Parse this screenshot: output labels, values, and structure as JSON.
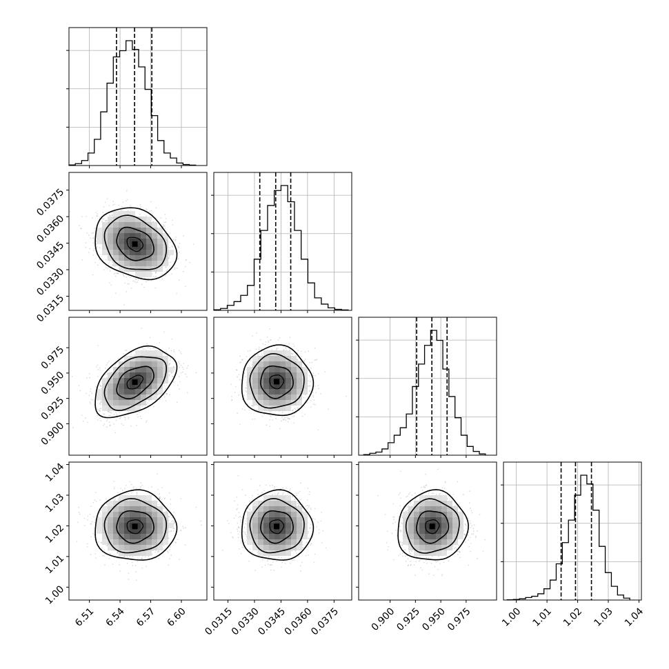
{
  "figure": {
    "background": "#ffffff",
    "grid_color": "#b0b0b0",
    "line_color": "#000000"
  },
  "chart_data": [
    {
      "type": "histogram",
      "parameter_index": 0,
      "xlim": [
        6.49,
        6.625
      ],
      "bin_edges": [
        6.49,
        6.4962,
        6.5024,
        6.5086,
        6.5148,
        6.521,
        6.5272,
        6.5334,
        6.5396,
        6.5458,
        6.552,
        6.5582,
        6.5644,
        6.5706,
        6.5768,
        6.583,
        6.5892,
        6.5954,
        6.6016,
        6.6078,
        6.614
      ],
      "counts": [
        0.5,
        1.5,
        4,
        10,
        21,
        43,
        66,
        87,
        92,
        100,
        93,
        79,
        61,
        40,
        20,
        10,
        6,
        2,
        0.8,
        0.3
      ],
      "quantiles": [
        6.5365,
        6.5542,
        6.5711
      ],
      "x_ticks": [
        "6.51",
        "6.54",
        "6.57",
        "6.60"
      ],
      "x_tick_values": [
        6.51,
        6.54,
        6.57,
        6.6
      ],
      "grid": true
    },
    {
      "type": "histogram",
      "parameter_index": 1,
      "xlim": [
        0.0307,
        0.0385
      ],
      "bin_edges": [
        0.0307,
        0.03108,
        0.03146,
        0.03184,
        0.03222,
        0.0326,
        0.03298,
        0.03336,
        0.03374,
        0.03412,
        0.0345,
        0.03488,
        0.03526,
        0.03564,
        0.03602,
        0.0364,
        0.03678,
        0.03716,
        0.03754,
        0.03792,
        0.0383
      ],
      "counts": [
        0.5,
        1.5,
        4,
        7,
        12,
        20,
        41,
        64,
        84,
        96,
        100,
        87,
        64,
        41,
        22,
        10,
        5,
        2,
        0.8,
        0.3
      ],
      "quantiles": [
        0.0333,
        0.0342,
        0.03505
      ],
      "x_ticks": [
        "0.0315",
        "0.0330",
        "0.0345",
        "0.0360",
        "0.0375"
      ],
      "x_tick_values": [
        0.0315,
        0.033,
        0.0345,
        0.036,
        0.0375
      ],
      "grid": true
    },
    {
      "type": "histogram",
      "parameter_index": 2,
      "xlim": [
        0.869,
        1.005
      ],
      "bin_edges": [
        0.874,
        0.88,
        0.886,
        0.892,
        0.898,
        0.904,
        0.91,
        0.916,
        0.922,
        0.928,
        0.934,
        0.94,
        0.946,
        0.952,
        0.958,
        0.964,
        0.97,
        0.976,
        0.982,
        0.988,
        0.994
      ],
      "counts": [
        0.5,
        1.5,
        2.5,
        5,
        10,
        16,
        22,
        33,
        55,
        73,
        88,
        100,
        92,
        69,
        47,
        30,
        16,
        7,
        3,
        1
      ],
      "quantiles": [
        0.9262,
        0.9412,
        0.9562
      ],
      "x_ticks": [
        "0.900",
        "0.925",
        "0.950",
        "0.975"
      ],
      "x_tick_values": [
        0.9,
        0.925,
        0.95,
        0.975
      ],
      "grid": true
    },
    {
      "type": "histogram",
      "parameter_index": 3,
      "xlim": [
        0.9958,
        1.0408
      ],
      "bin_edges": [
        0.997,
        0.999,
        1.001,
        1.003,
        1.005,
        1.007,
        1.009,
        1.011,
        1.013,
        1.015,
        1.017,
        1.019,
        1.021,
        1.023,
        1.025,
        1.027,
        1.029,
        1.031,
        1.033,
        1.035,
        1.037
      ],
      "counts": [
        0.2,
        0.5,
        1,
        2,
        3,
        5,
        9,
        16,
        29,
        46,
        64,
        84,
        100,
        93,
        72,
        43,
        22,
        11,
        4,
        1.5
      ],
      "quantiles": [
        1.0146,
        1.0193,
        1.0245
      ],
      "x_ticks": [
        "1.00",
        "1.01",
        "1.02",
        "1.03",
        "1.04"
      ],
      "x_tick_values": [
        1.0,
        1.01,
        1.02,
        1.03,
        1.04
      ],
      "grid": true
    },
    {
      "type": "contour_density",
      "x_param": 0,
      "y_param": 1,
      "center": [
        6.5545,
        0.03445
      ],
      "xlim": [
        6.49,
        6.625
      ],
      "ylim": [
        0.0307,
        0.0385
      ],
      "y_ticks": [
        "0.0315",
        "0.0330",
        "0.0345",
        "0.0360",
        "0.0375"
      ],
      "y_tick_values": [
        0.0315,
        0.033,
        0.0345,
        0.036,
        0.0375
      ],
      "correlation": -0.25
    },
    {
      "type": "contour_density",
      "x_param": 0,
      "y_param": 2,
      "center": [
        6.5545,
        0.941
      ],
      "xlim": [
        6.49,
        6.625
      ],
      "ylim": [
        0.869,
        1.005
      ],
      "y_ticks": [
        "0.900",
        "0.925",
        "0.950",
        "0.975"
      ],
      "y_tick_values": [
        0.9,
        0.925,
        0.95,
        0.975
      ],
      "correlation": 0.45
    },
    {
      "type": "contour_density",
      "x_param": 1,
      "y_param": 2,
      "center": [
        0.03425,
        0.9415
      ],
      "xlim": [
        0.0307,
        0.0385
      ],
      "ylim": [
        0.869,
        1.005
      ],
      "correlation": 0.0
    },
    {
      "type": "contour_density",
      "x_param": 0,
      "y_param": 3,
      "center": [
        6.5545,
        1.0198
      ],
      "xlim": [
        6.49,
        6.625
      ],
      "ylim": [
        0.9958,
        1.0408
      ],
      "y_ticks": [
        "1.00",
        "1.01",
        "1.02",
        "1.03",
        "1.04"
      ],
      "y_tick_values": [
        1.0,
        1.01,
        1.02,
        1.03,
        1.04
      ],
      "correlation": 0.0
    },
    {
      "type": "contour_density",
      "x_param": 1,
      "y_param": 3,
      "center": [
        0.03425,
        1.0198
      ],
      "xlim": [
        0.0307,
        0.0385
      ],
      "ylim": [
        0.9958,
        1.0408
      ],
      "correlation": 0.0
    },
    {
      "type": "contour_density",
      "x_param": 2,
      "y_param": 3,
      "center": [
        0.9415,
        1.0198
      ],
      "xlim": [
        0.869,
        1.005
      ],
      "ylim": [
        0.9958,
        1.0408
      ],
      "correlation": 0.05
    }
  ]
}
